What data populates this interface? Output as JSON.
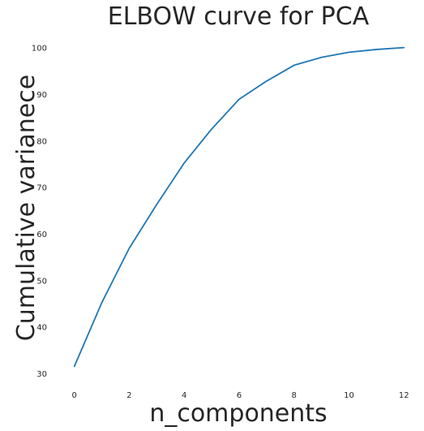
{
  "chart_data": {
    "type": "line",
    "title": "ELBOW curve for PCA",
    "xlabel": "n_components",
    "ylabel": "Cumulative varianece",
    "x": [
      0,
      1,
      2,
      3,
      4,
      5,
      6,
      7,
      8,
      9,
      10,
      11,
      12
    ],
    "xticks": [
      0,
      2,
      4,
      6,
      8,
      10,
      12
    ],
    "yticks": [
      30,
      40,
      50,
      60,
      70,
      80,
      90,
      100
    ],
    "xlim": [
      -0.7,
      12.2
    ],
    "ylim": [
      28,
      103
    ],
    "grid": false,
    "series": [
      {
        "values": [
          31.6,
          45.3,
          57.0,
          66.4,
          75.3,
          82.6,
          89.0,
          92.9,
          96.3,
          98.0,
          99.1,
          99.7,
          100.1
        ],
        "color": "#1f77b4"
      }
    ]
  }
}
